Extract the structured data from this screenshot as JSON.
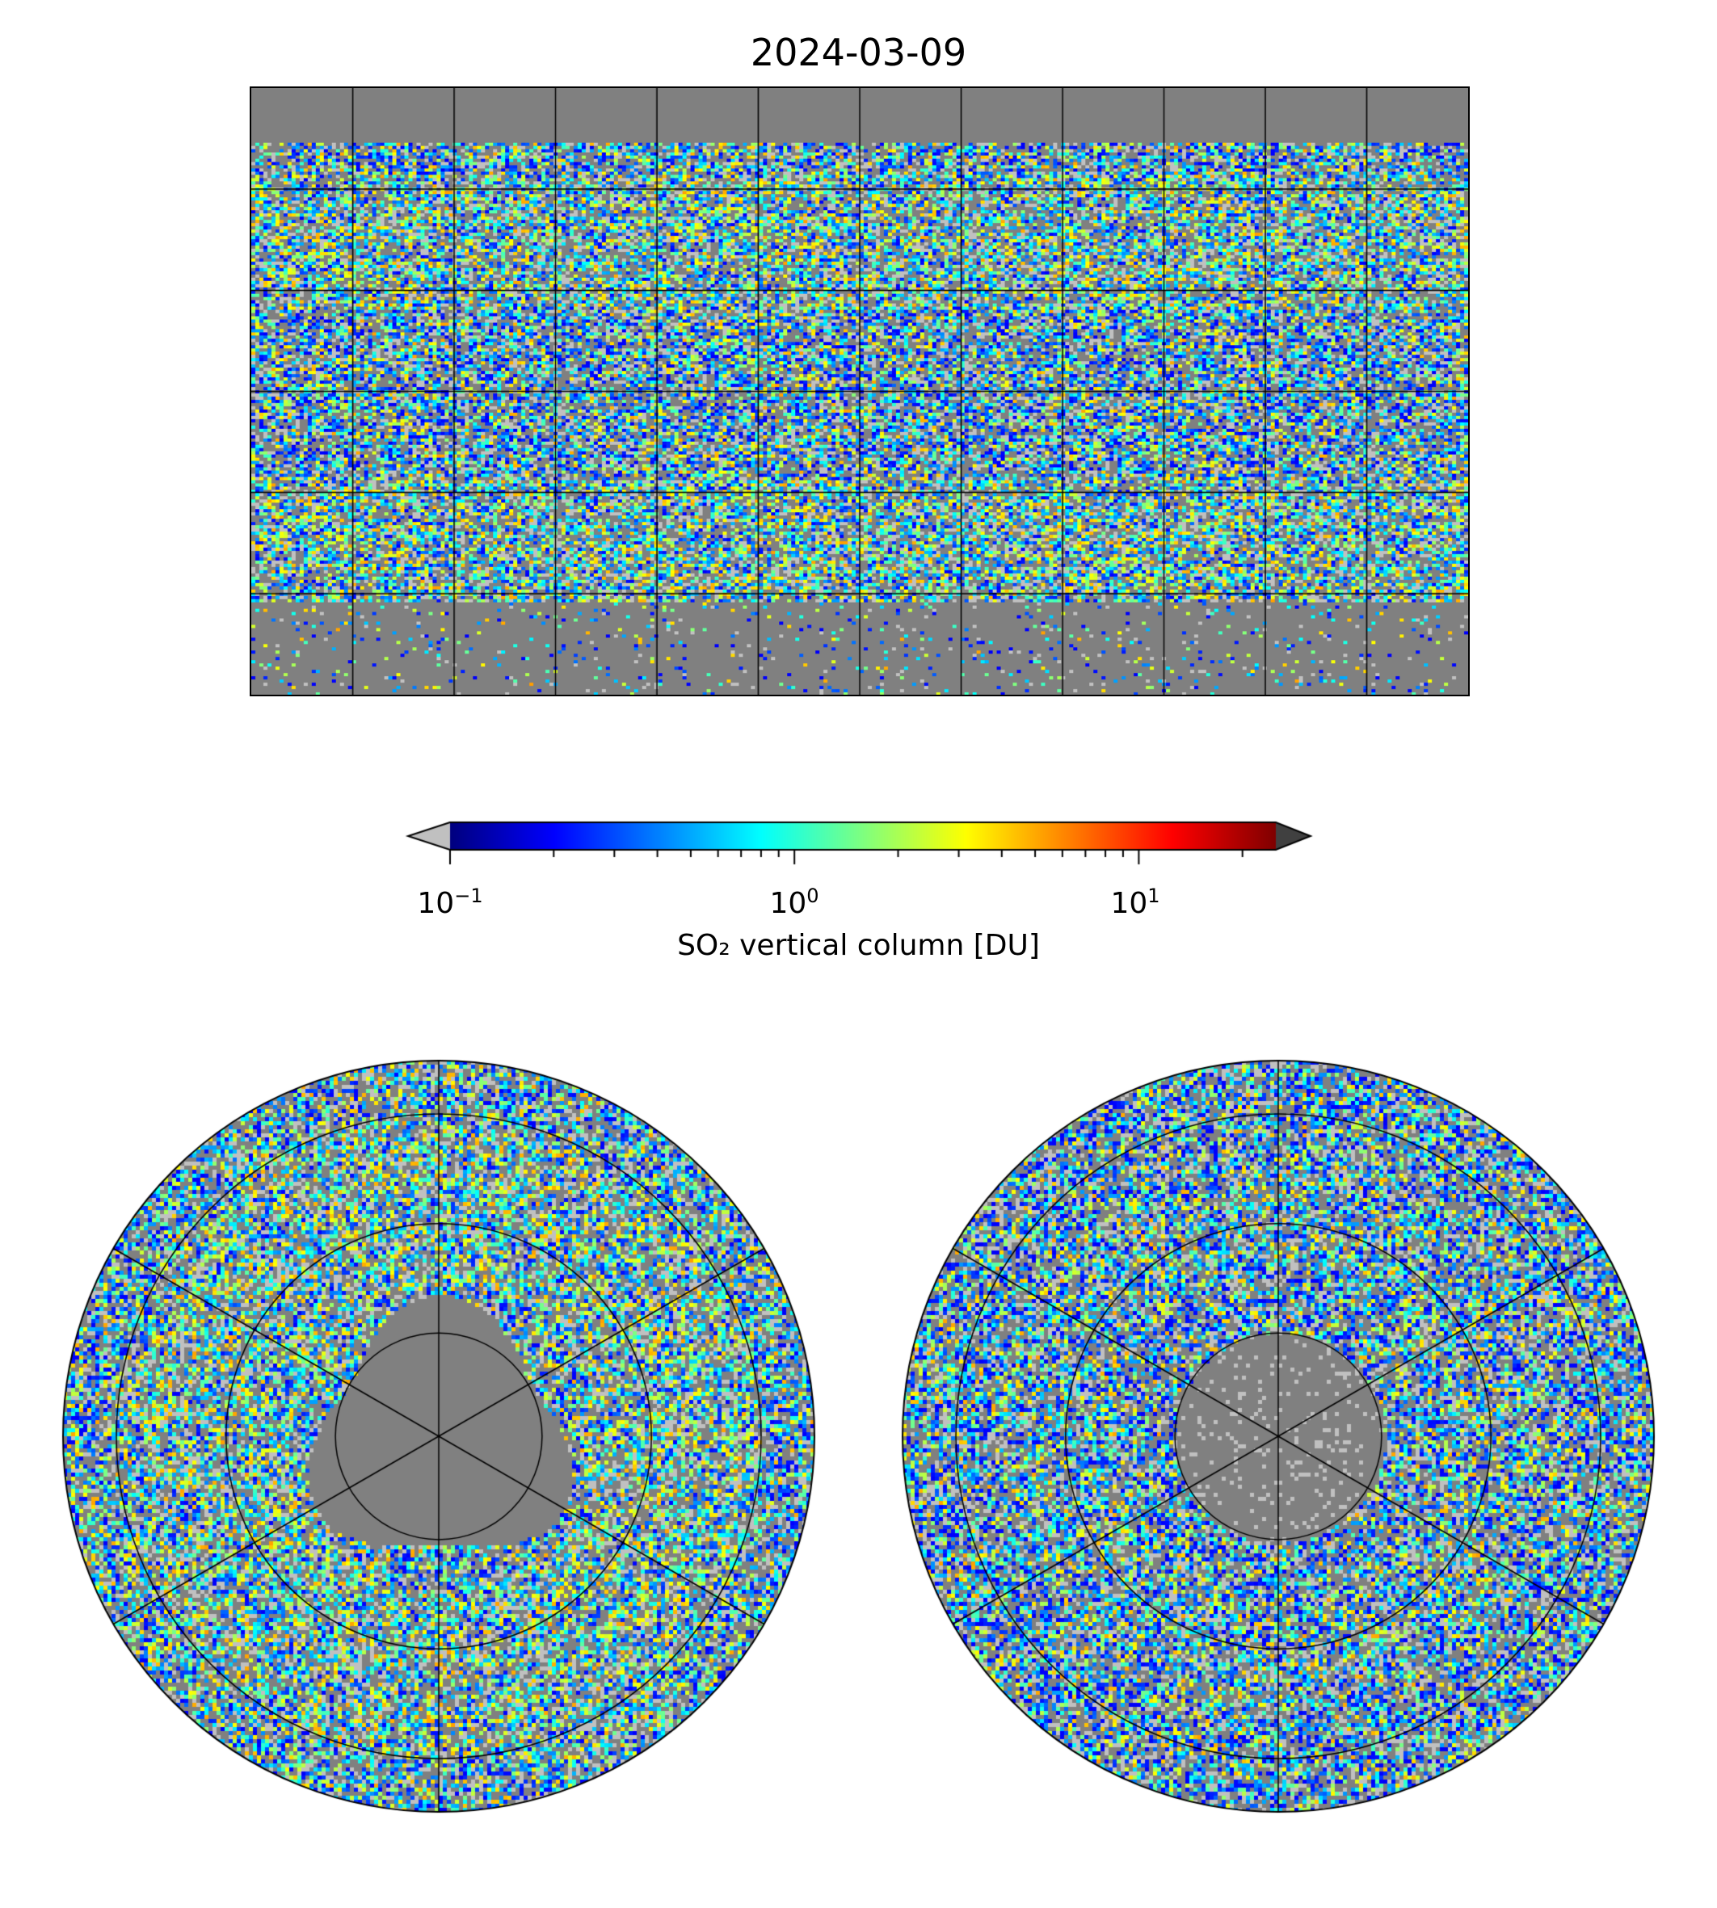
{
  "title": "2024-03-09",
  "colorbar": {
    "label": "SO₂ vertical column [DU]",
    "tick_base": [
      "10",
      "10",
      "10"
    ],
    "tick_exp": [
      "−1",
      "0",
      "1"
    ],
    "extend": "both",
    "under_color": "#c0c0c0",
    "over_color": "#404040"
  },
  "colors": {
    "no_data": "#808080",
    "below_min": "#c0c0c0",
    "coast": "#000000"
  },
  "chart_data": {
    "type": "heatmap",
    "title": "2024-03-09",
    "variable": "SO₂ vertical column [DU]",
    "colormap": "jet",
    "scale": "log",
    "vmin": 0.1,
    "vmax": 25,
    "colorbar_ticks": [
      0.1,
      1,
      10
    ],
    "panels": [
      {
        "name": "global",
        "projection": "plate-carree",
        "lon_range": [
          -180,
          180
        ],
        "lat_range": [
          -90,
          90
        ],
        "grid_lon_step": 30,
        "grid_lat_step": 30
      },
      {
        "name": "north-polar",
        "projection": "north-polar-stereographic",
        "grid_lat": [
          60,
          30,
          0
        ],
        "grid_lon_step": 60
      },
      {
        "name": "south-polar",
        "projection": "south-polar-stereographic",
        "grid_lat": [
          -60,
          -30,
          0
        ],
        "grid_lon_step": 60
      }
    ]
  }
}
